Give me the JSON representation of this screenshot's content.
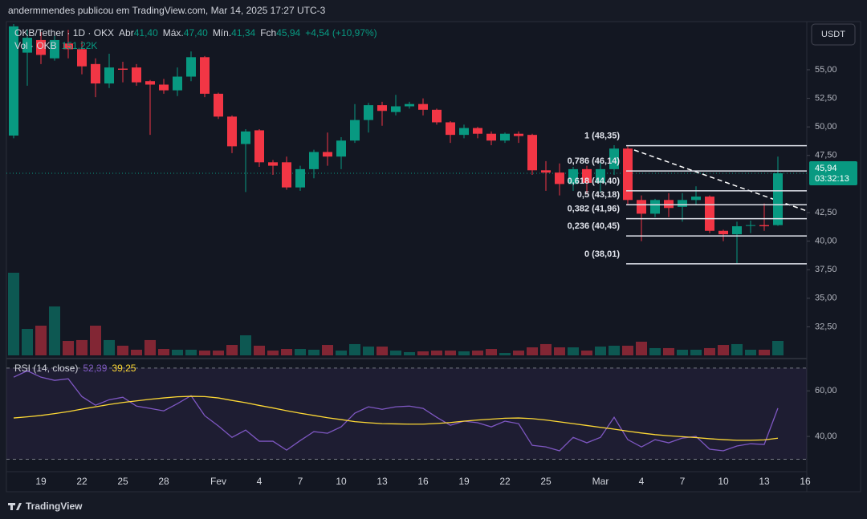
{
  "header": {
    "attribution": "andermmendes publicou em TradingView.com, Mar 14, 2025 17:27 UTC-3",
    "currency_button": "USDT"
  },
  "footer": {
    "brand": "TradingView"
  },
  "chart_data": [
    {
      "type": "candlestick",
      "title": "OKB/Tether · 1D · OKX",
      "legend_items": [
        [
          "Abr",
          "41,40"
        ],
        [
          "Máx.",
          "47,40"
        ],
        [
          "Mín.",
          "41,34"
        ],
        [
          "Fch",
          "45,94"
        ]
      ],
      "change_label": "+4,54 (+10,97%)",
      "volume_title": "Vol · OKB",
      "volume_legend_value": "151,22K",
      "last_price_label": "45,94",
      "countdown": "03:32:13",
      "up_color": "#089981",
      "down_color": "#f23645",
      "categories": [
        null,
        null,
        "19",
        null,
        null,
        "22",
        null,
        null,
        "25",
        null,
        null,
        "28",
        null,
        null,
        null,
        "Fev",
        null,
        null,
        "4",
        null,
        null,
        "7",
        null,
        null,
        "10",
        null,
        null,
        "13",
        null,
        null,
        "16",
        null,
        null,
        "19",
        null,
        null,
        "22",
        null,
        null,
        "25",
        null,
        null,
        null,
        "Mar",
        null,
        null,
        "4",
        null,
        null,
        "7",
        null,
        null,
        "10",
        null,
        null,
        "13",
        null,
        null,
        "16"
      ],
      "open": [
        49.24,
        56.5,
        57.6,
        56.0,
        57.3,
        56.8,
        55.5,
        53.8,
        55.1,
        55.2,
        54.0,
        53.7,
        53.2,
        54.4,
        56.1,
        52.9,
        50.9,
        48.5,
        49.7,
        46.9,
        46.9,
        44.7,
        46.3,
        47.8,
        47.4,
        48.8,
        50.6,
        51.9,
        51.3,
        51.8,
        52.0,
        51.5,
        50.4,
        49.3,
        49.9,
        49.4,
        48.8,
        49.4,
        49.3,
        46.2,
        46.0,
        45.0,
        46.3,
        45.1,
        46.3,
        48.1,
        43.6,
        42.4,
        43.6,
        43.0,
        43.6,
        43.9,
        40.9,
        40.6,
        41.4,
        41.4,
        41.4,
        null,
        null
      ],
      "high": [
        59.0,
        58.5,
        58.3,
        58.2,
        58.5,
        57.5,
        56.0,
        56.4,
        55.7,
        55.5,
        54.1,
        54.2,
        55.2,
        56.6,
        56.2,
        53.0,
        51.0,
        49.8,
        49.8,
        47.1,
        47.4,
        46.6,
        48.0,
        49.5,
        49.1,
        52.0,
        52.1,
        52.2,
        52.8,
        52.2,
        52.5,
        51.6,
        50.5,
        50.2,
        50.0,
        49.6,
        49.5,
        49.6,
        49.4,
        47.0,
        46.8,
        46.5,
        46.6,
        47.2,
        48.4,
        48.3,
        44.0,
        43.7,
        44.2,
        44.2,
        44.8,
        44.0,
        41.0,
        41.7,
        41.8,
        43.3,
        47.4,
        null,
        null
      ],
      "low": [
        49.0,
        53.6,
        55.5,
        55.8,
        56.0,
        54.6,
        52.6,
        53.4,
        53.9,
        53.6,
        49.3,
        52.9,
        52.7,
        54.0,
        52.6,
        50.7,
        47.7,
        44.3,
        46.5,
        45.8,
        44.5,
        44.4,
        45.5,
        46.6,
        46.3,
        48.6,
        49.5,
        50.1,
        51.0,
        51.6,
        51.0,
        50.2,
        48.6,
        49.0,
        49.0,
        48.4,
        48.6,
        48.6,
        45.8,
        44.4,
        44.0,
        44.4,
        44.2,
        44.3,
        45.8,
        43.2,
        40.0,
        42.1,
        42.1,
        41.7,
        43.2,
        40.7,
        40.0,
        38.0,
        40.7,
        40.9,
        41.34,
        null,
        null
      ],
      "close": [
        58.8,
        57.8,
        56.3,
        57.6,
        56.8,
        55.3,
        53.8,
        55.2,
        55.0,
        53.9,
        53.7,
        53.2,
        54.4,
        56.1,
        52.9,
        50.9,
        48.3,
        49.6,
        46.9,
        46.6,
        44.7,
        46.3,
        47.8,
        47.4,
        48.8,
        50.6,
        51.9,
        51.4,
        51.8,
        52.0,
        51.5,
        50.4,
        49.3,
        49.9,
        49.4,
        48.8,
        49.4,
        49.2,
        46.2,
        46.0,
        45.0,
        46.3,
        45.1,
        46.3,
        48.1,
        43.6,
        42.4,
        43.6,
        42.9,
        43.6,
        43.9,
        40.9,
        40.6,
        41.3,
        41.4,
        41.3,
        45.94,
        null,
        null
      ],
      "volume": [
        865,
        277,
        311,
        512,
        151,
        160,
        311,
        160,
        101,
        59,
        160,
        67,
        59,
        59,
        50,
        50,
        109,
        210,
        101,
        50,
        67,
        67,
        59,
        109,
        50,
        118,
        92,
        92,
        50,
        34,
        42,
        50,
        50,
        42,
        50,
        67,
        25,
        50,
        84,
        118,
        84,
        84,
        50,
        92,
        101,
        101,
        143,
        76,
        76,
        59,
        59,
        76,
        109,
        118,
        59,
        59,
        151.22,
        null,
        null
      ],
      "ylim": [
        30,
        59
      ],
      "yticks": [
        {
          "value": 32.5,
          "label": "32,50"
        },
        {
          "value": 35,
          "label": "35,00"
        },
        {
          "value": 37.5,
          "label": "37,50"
        },
        {
          "value": 40,
          "label": "40,00"
        },
        {
          "value": 42.5,
          "label": "42,50"
        },
        {
          "value": 47.5,
          "label": "47,50"
        },
        {
          "value": 50,
          "label": "50,00"
        },
        {
          "value": 52.5,
          "label": "52,50"
        },
        {
          "value": 55,
          "label": "55,00"
        }
      ],
      "fib_levels": [
        {
          "value": 48.35,
          "label": "1 (48,35)"
        },
        {
          "value": 46.14,
          "label": "0,786 (46,14)"
        },
        {
          "value": 44.4,
          "label": "0,618 (44,40)"
        },
        {
          "value": 43.18,
          "label": "0,5 (43,18)"
        },
        {
          "value": 41.96,
          "label": "0,382 (41,96)"
        },
        {
          "value": 40.45,
          "label": "0,236 (40,45)"
        },
        {
          "value": 38.01,
          "label": "0 (38,01)"
        }
      ]
    },
    {
      "type": "line",
      "title": "RSI (14, close)",
      "band": [
        30,
        70
      ],
      "ylim": [
        25.6,
        72.4
      ],
      "yticks": [
        {
          "value": 40,
          "label": "40,00"
        },
        {
          "value": 60,
          "label": "60,00"
        }
      ],
      "series": [
        {
          "name": "RSI",
          "color": "#7e57c2",
          "legend_value": "52,39",
          "values": [
            66.0,
            68.8,
            66.0,
            64.6,
            65.3,
            57.5,
            53.7,
            56.1,
            57.2,
            53.3,
            52.3,
            51.2,
            54.4,
            57.9,
            49.1,
            44.6,
            39.6,
            42.8,
            37.9,
            37.9,
            34.0,
            38.2,
            42.1,
            41.4,
            44.2,
            50.2,
            53.0,
            51.9,
            53.0,
            53.3,
            52.3,
            48.4,
            44.9,
            46.7,
            46.0,
            44.2,
            46.7,
            45.6,
            36.1,
            35.4,
            33.7,
            39.6,
            37.2,
            39.6,
            48.4,
            38.6,
            35.4,
            38.6,
            37.2,
            39.3,
            40.0,
            34.4,
            33.7,
            35.8,
            36.8,
            36.5,
            52.39,
            null,
            null
          ]
        },
        {
          "name": "MA",
          "color": "#fdd835",
          "legend_value": "39,25",
          "values": [
            48.1,
            48.6,
            49.2,
            50.0,
            50.9,
            52.0,
            53.0,
            54.0,
            54.9,
            55.6,
            56.3,
            56.9,
            57.4,
            57.6,
            57.5,
            56.9,
            55.8,
            54.8,
            53.6,
            52.5,
            51.3,
            50.2,
            49.2,
            48.2,
            47.4,
            46.5,
            46.0,
            45.6,
            45.5,
            45.4,
            45.4,
            45.7,
            46.1,
            46.7,
            47.2,
            47.6,
            48.0,
            48.1,
            47.8,
            47.2,
            46.4,
            45.6,
            44.8,
            44.0,
            43.2,
            42.3,
            41.5,
            40.8,
            40.3,
            39.9,
            39.5,
            39.0,
            38.6,
            38.3,
            38.3,
            38.5,
            39.25,
            null,
            null
          ]
        }
      ]
    }
  ]
}
